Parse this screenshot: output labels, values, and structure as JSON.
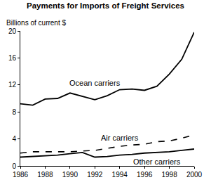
{
  "chart_data": {
    "type": "line",
    "title": "Payments for Imports of Freight Services",
    "y_label": "Billions of current $",
    "x": [
      1986,
      1987,
      1988,
      1989,
      1990,
      1991,
      1992,
      1993,
      1994,
      1995,
      1996,
      1997,
      1998,
      1999,
      2000
    ],
    "series": [
      {
        "name": "Ocean carriers",
        "color": "#000000",
        "line_style": "solid",
        "values": [
          9.2,
          9.0,
          9.9,
          10.0,
          10.8,
          10.3,
          9.8,
          10.4,
          11.3,
          11.4,
          11.2,
          11.8,
          13.6,
          15.8,
          19.8
        ]
      },
      {
        "name": "Air carriers",
        "color": "#000000",
        "line_style": "dash",
        "values": [
          1.9,
          2.1,
          2.1,
          2.1,
          2.1,
          2.2,
          2.3,
          2.6,
          2.9,
          3.1,
          3.2,
          3.6,
          3.7,
          4.1,
          4.6
        ]
      },
      {
        "name": "Other carriers",
        "color": "#000000",
        "line_style": "solid",
        "values": [
          1.3,
          1.4,
          1.5,
          1.6,
          1.8,
          2.0,
          1.3,
          1.4,
          1.6,
          1.7,
          1.9,
          2.0,
          2.1,
          2.3,
          2.5
        ]
      }
    ],
    "xlim": [
      1986,
      2000
    ],
    "xticks": [
      1986,
      1988,
      1990,
      1992,
      1994,
      1996,
      1998,
      2000
    ],
    "ylim": [
      0,
      20
    ],
    "yticks": [
      0,
      4,
      8,
      12,
      16,
      20
    ],
    "grid": false
  }
}
